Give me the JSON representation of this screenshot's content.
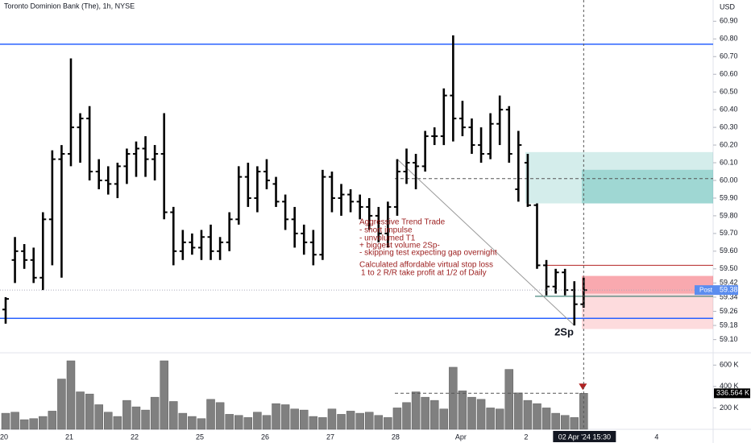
{
  "chart_data": {
    "type": "ohlc",
    "title": "Toronto Dominion Bank (The), 1h, NYSE",
    "currency": "USD",
    "ohlc": [
      [
        59.27,
        59.34,
        59.19,
        59.33
      ],
      [
        59.55,
        59.68,
        59.42,
        59.6
      ],
      [
        59.6,
        59.64,
        59.5,
        59.55
      ],
      [
        59.55,
        59.62,
        59.42,
        59.45
      ],
      [
        59.45,
        59.82,
        59.38,
        59.78
      ],
      [
        59.78,
        60.17,
        59.52,
        60.12
      ],
      [
        60.12,
        60.2,
        59.45,
        60.15
      ],
      [
        60.15,
        60.69,
        60.08,
        60.3
      ],
      [
        60.3,
        60.38,
        60.1,
        60.35
      ],
      [
        60.35,
        60.42,
        60.0,
        60.05
      ],
      [
        60.05,
        60.12,
        59.95,
        60.0
      ],
      [
        60.0,
        60.08,
        59.92,
        59.98
      ],
      [
        59.98,
        60.1,
        59.9,
        60.08
      ],
      [
        60.08,
        60.18,
        59.98,
        60.15
      ],
      [
        60.15,
        60.22,
        60.02,
        60.18
      ],
      [
        60.18,
        60.25,
        60.02,
        60.12
      ],
      [
        60.12,
        60.2,
        60.0,
        60.15
      ],
      [
        60.15,
        60.38,
        59.78,
        59.82
      ],
      [
        59.82,
        59.85,
        59.52,
        59.6
      ],
      [
        59.6,
        59.72,
        59.55,
        59.65
      ],
      [
        59.65,
        59.7,
        59.58,
        59.62
      ],
      [
        59.62,
        59.72,
        59.55,
        59.68
      ],
      [
        59.68,
        59.75,
        59.55,
        59.6
      ],
      [
        59.6,
        59.68,
        59.55,
        59.65
      ],
      [
        59.65,
        59.82,
        59.6,
        59.78
      ],
      [
        59.78,
        60.08,
        59.75,
        60.02
      ],
      [
        60.02,
        60.1,
        59.85,
        59.9
      ],
      [
        59.9,
        60.08,
        59.82,
        60.05
      ],
      [
        60.05,
        60.12,
        59.95,
        60.0
      ],
      [
        59.98,
        60.02,
        59.85,
        59.88
      ],
      [
        59.88,
        59.92,
        59.72,
        59.78
      ],
      [
        59.78,
        59.85,
        59.62,
        59.7
      ],
      [
        59.7,
        59.75,
        59.58,
        59.65
      ],
      [
        59.65,
        59.72,
        59.52,
        59.58
      ],
      [
        59.58,
        60.06,
        59.55,
        60.02
      ],
      [
        60.02,
        60.05,
        59.82,
        59.9
      ],
      [
        59.9,
        59.98,
        59.8,
        59.92
      ],
      [
        59.92,
        59.95,
        59.82,
        59.88
      ],
      [
        59.88,
        59.92,
        59.78,
        59.85
      ],
      [
        59.85,
        59.9,
        59.72,
        59.8
      ],
      [
        59.8,
        59.85,
        59.65,
        59.7
      ],
      [
        59.7,
        59.88,
        59.62,
        59.85
      ],
      [
        59.85,
        60.12,
        59.8,
        60.05
      ],
      [
        60.05,
        60.18,
        59.98,
        60.1
      ],
      [
        60.1,
        60.15,
        59.95,
        60.08
      ],
      [
        60.08,
        60.28,
        60.05,
        60.25
      ],
      [
        60.25,
        60.3,
        60.2,
        60.25
      ],
      [
        60.25,
        60.52,
        60.2,
        60.48
      ],
      [
        60.48,
        60.82,
        60.22,
        60.35
      ],
      [
        60.35,
        60.45,
        60.25,
        60.3
      ],
      [
        60.3,
        60.35,
        60.15,
        60.2
      ],
      [
        60.2,
        60.3,
        60.1,
        60.15
      ],
      [
        60.15,
        60.38,
        60.12,
        60.32
      ],
      [
        60.32,
        60.48,
        60.2,
        60.4
      ],
      [
        60.4,
        60.42,
        60.1,
        60.15
      ],
      [
        59.95,
        60.28,
        59.88,
        60.2
      ],
      [
        60.1,
        60.15,
        59.85,
        59.86
      ],
      [
        59.86,
        59.87,
        59.5,
        59.52
      ],
      [
        59.52,
        59.55,
        59.35,
        59.4
      ],
      [
        59.4,
        59.5,
        59.36,
        59.48
      ],
      [
        59.48,
        59.5,
        59.35,
        59.38
      ],
      [
        59.38,
        59.43,
        59.18,
        59.3
      ],
      [
        59.3,
        59.45,
        59.28,
        59.38
      ]
    ],
    "volume": [
      150000,
      160000,
      90000,
      100000,
      120000,
      170000,
      470000,
      640000,
      350000,
      330000,
      230000,
      160000,
      120000,
      270000,
      210000,
      180000,
      300000,
      640000,
      260000,
      150000,
      120000,
      100000,
      280000,
      250000,
      140000,
      130000,
      110000,
      160000,
      130000,
      240000,
      230000,
      190000,
      180000,
      120000,
      110000,
      190000,
      140000,
      170000,
      150000,
      160000,
      130000,
      110000,
      200000,
      250000,
      350000,
      300000,
      270000,
      190000,
      580000,
      360000,
      300000,
      280000,
      200000,
      190000,
      560000,
      340000,
      270000,
      240000,
      200000,
      150000,
      130000,
      110000,
      336564
    ],
    "volume_last_label": "336.564 K",
    "bar_color": "#000000",
    "volume_color": "#808080",
    "ylim": [
      59.03,
      61.02
    ],
    "yticks": [
      {
        "value": 60.9,
        "label": "60.90"
      },
      {
        "value": 60.8,
        "label": "60.80"
      },
      {
        "value": 60.7,
        "label": "60.70"
      },
      {
        "value": 60.6,
        "label": "60.60"
      },
      {
        "value": 60.5,
        "label": "60.50"
      },
      {
        "value": 60.4,
        "label": "60.40"
      },
      {
        "value": 60.3,
        "label": "60.30"
      },
      {
        "value": 60.2,
        "label": "60.20"
      },
      {
        "value": 60.1,
        "label": "60.10"
      },
      {
        "value": 60.0,
        "label": "60.00"
      },
      {
        "value": 59.9,
        "label": "59.90"
      },
      {
        "value": 59.8,
        "label": "59.80"
      },
      {
        "value": 59.7,
        "label": "59.70"
      },
      {
        "value": 59.6,
        "label": "59.60"
      },
      {
        "value": 59.5,
        "label": "59.50"
      },
      {
        "value": 59.42,
        "label": "59.42"
      },
      {
        "value": 59.34,
        "label": "59.34"
      },
      {
        "value": 59.26,
        "label": "59.26"
      },
      {
        "value": 59.18,
        "label": "59.18"
      },
      {
        "value": 59.1,
        "label": "59.10"
      }
    ],
    "vlim": [
      0,
      700000
    ],
    "vticks": [
      {
        "value": 600000,
        "label": "600 K"
      },
      {
        "value": 400000,
        "label": "400 K"
      },
      {
        "value": 200000,
        "label": "200 K"
      }
    ],
    "xticks": [
      {
        "value": 0,
        "label": "20"
      },
      {
        "value": 7,
        "label": "21"
      },
      {
        "value": 14,
        "label": "22"
      },
      {
        "value": 21,
        "label": "25"
      },
      {
        "value": 28,
        "label": "26"
      },
      {
        "value": 35,
        "label": "27"
      },
      {
        "value": 42,
        "label": "28"
      },
      {
        "value": 49,
        "label": "Apr"
      },
      {
        "value": 56,
        "label": "2"
      },
      {
        "value": 70,
        "label": "4"
      }
    ],
    "cursor_label": "02 Apr '24   15:30",
    "post_label": "Post",
    "levels": {
      "resistance": 60.77,
      "support": 59.22,
      "target_top": 60.16,
      "target_mid": 60.06,
      "target_bottom": 59.87,
      "target_line": 60.01,
      "stop_line": 59.52,
      "entry_top": 59.46,
      "entry_bottom": 59.36,
      "stop_bottom": 59.16,
      "entry_line": 59.345
    },
    "spike_label": "2Sp",
    "annotation": [
      "Aggressive Trend Trade",
      "- short impulse",
      "- unvolumed T1",
      "+ biggest volume 2Sp-",
      "- skipping test expecting gap overnight",
      "Calculated affordable virtual stop loss",
      "1 to 2 R/R take profit at 1/2 of Daily"
    ]
  }
}
